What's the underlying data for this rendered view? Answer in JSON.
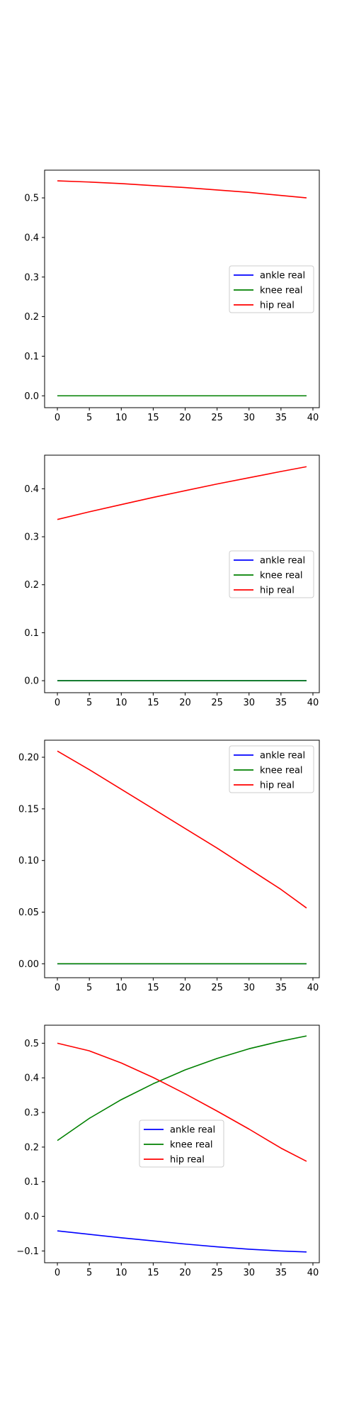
{
  "colors": {
    "ankle": "#0000ff",
    "knee": "#008000",
    "hip": "#ff0000",
    "axes": "#000000",
    "background": "#ffffff",
    "legend_border": "#cccccc"
  },
  "chart_data": [
    {
      "type": "line",
      "title": "",
      "xlabel": "",
      "ylabel": "",
      "grid": false,
      "legend_position": "center-right",
      "xlim": [
        -2,
        41
      ],
      "ylim": [
        -0.03,
        0.57
      ],
      "xticks": [
        0,
        5,
        10,
        15,
        20,
        25,
        30,
        35,
        40
      ],
      "yticks": [
        0.0,
        0.1,
        0.2,
        0.3,
        0.4,
        0.5
      ],
      "ytick_labels": [
        "0.0",
        "0.1",
        "0.2",
        "0.3",
        "0.4",
        "0.5"
      ],
      "series": [
        {
          "name": "ankle real",
          "color_key": "ankle",
          "x": [
            0,
            10,
            20,
            30,
            39
          ],
          "y": [
            0.0,
            0.0,
            0.0,
            0.0,
            0.0
          ]
        },
        {
          "name": "knee real",
          "color_key": "knee",
          "x": [
            0,
            10,
            20,
            30,
            39
          ],
          "y": [
            0.0,
            0.0,
            0.0,
            0.0,
            0.0
          ]
        },
        {
          "name": "hip real",
          "color_key": "hip",
          "x": [
            0,
            5,
            10,
            15,
            20,
            25,
            30,
            35,
            39
          ],
          "y": [
            0.543,
            0.54,
            0.536,
            0.531,
            0.526,
            0.52,
            0.514,
            0.506,
            0.5
          ]
        }
      ]
    },
    {
      "type": "line",
      "title": "",
      "xlabel": "",
      "ylabel": "",
      "grid": false,
      "legend_position": "center-right",
      "xlim": [
        -2,
        41
      ],
      "ylim": [
        -0.025,
        0.47
      ],
      "xticks": [
        0,
        5,
        10,
        15,
        20,
        25,
        30,
        35,
        40
      ],
      "yticks": [
        0.0,
        0.1,
        0.2,
        0.3,
        0.4
      ],
      "ytick_labels": [
        "0.0",
        "0.1",
        "0.2",
        "0.3",
        "0.4"
      ],
      "series": [
        {
          "name": "ankle real",
          "color_key": "ankle",
          "x": [
            0,
            10,
            20,
            30,
            39
          ],
          "y": [
            0.0,
            0.0,
            0.0,
            0.0,
            0.0
          ]
        },
        {
          "name": "knee real",
          "color_key": "knee",
          "x": [
            0,
            10,
            20,
            30,
            39
          ],
          "y": [
            0.0,
            0.0,
            0.0,
            0.0,
            0.0
          ]
        },
        {
          "name": "hip real",
          "color_key": "hip",
          "x": [
            0,
            5,
            10,
            15,
            20,
            25,
            30,
            35,
            39
          ],
          "y": [
            0.336,
            0.352,
            0.367,
            0.382,
            0.396,
            0.41,
            0.423,
            0.436,
            0.446
          ]
        }
      ]
    },
    {
      "type": "line",
      "title": "",
      "xlabel": "",
      "ylabel": "",
      "grid": false,
      "legend_position": "upper-right",
      "xlim": [
        -2,
        41
      ],
      "ylim": [
        -0.0135,
        0.2165
      ],
      "xticks": [
        0,
        5,
        10,
        15,
        20,
        25,
        30,
        35,
        40
      ],
      "yticks": [
        0.0,
        0.05,
        0.1,
        0.15,
        0.2
      ],
      "ytick_labels": [
        "0.00",
        "0.05",
        "0.10",
        "0.15",
        "0.20"
      ],
      "series": [
        {
          "name": "ankle real",
          "color_key": "ankle",
          "x": [
            0,
            10,
            20,
            30,
            39
          ],
          "y": [
            0.0,
            0.0,
            0.0,
            0.0,
            0.0
          ]
        },
        {
          "name": "knee real",
          "color_key": "knee",
          "x": [
            0,
            10,
            20,
            30,
            39
          ],
          "y": [
            0.0,
            0.0,
            0.0,
            0.0,
            0.0
          ]
        },
        {
          "name": "hip real",
          "color_key": "hip",
          "x": [
            0,
            5,
            10,
            15,
            20,
            25,
            30,
            35,
            39
          ],
          "y": [
            0.206,
            0.188,
            0.169,
            0.15,
            0.131,
            0.112,
            0.092,
            0.072,
            0.054
          ]
        }
      ]
    },
    {
      "type": "line",
      "title": "",
      "xlabel": "",
      "ylabel": "",
      "grid": false,
      "legend_position": "center",
      "xlim": [
        -2,
        41
      ],
      "ylim": [
        -0.134,
        0.552
      ],
      "xticks": [
        0,
        5,
        10,
        15,
        20,
        25,
        30,
        35,
        40
      ],
      "yticks": [
        -0.1,
        0.0,
        0.1,
        0.2,
        0.3,
        0.4,
        0.5
      ],
      "ytick_labels": [
        "−0.1",
        "0.0",
        "0.1",
        "0.2",
        "0.3",
        "0.4",
        "0.5"
      ],
      "series": [
        {
          "name": "ankle real",
          "color_key": "ankle",
          "x": [
            0,
            5,
            10,
            15,
            20,
            25,
            30,
            35,
            39
          ],
          "y": [
            -0.042,
            -0.052,
            -0.062,
            -0.071,
            -0.08,
            -0.088,
            -0.095,
            -0.1,
            -0.103
          ]
        },
        {
          "name": "knee real",
          "color_key": "knee",
          "x": [
            0,
            5,
            10,
            15,
            20,
            25,
            30,
            35,
            39
          ],
          "y": [
            0.219,
            0.283,
            0.337,
            0.383,
            0.423,
            0.456,
            0.484,
            0.506,
            0.521
          ]
        },
        {
          "name": "hip real",
          "color_key": "hip",
          "x": [
            0,
            5,
            10,
            15,
            20,
            25,
            30,
            35,
            39
          ],
          "y": [
            0.5,
            0.478,
            0.443,
            0.401,
            0.354,
            0.304,
            0.252,
            0.197,
            0.159
          ]
        }
      ]
    }
  ]
}
